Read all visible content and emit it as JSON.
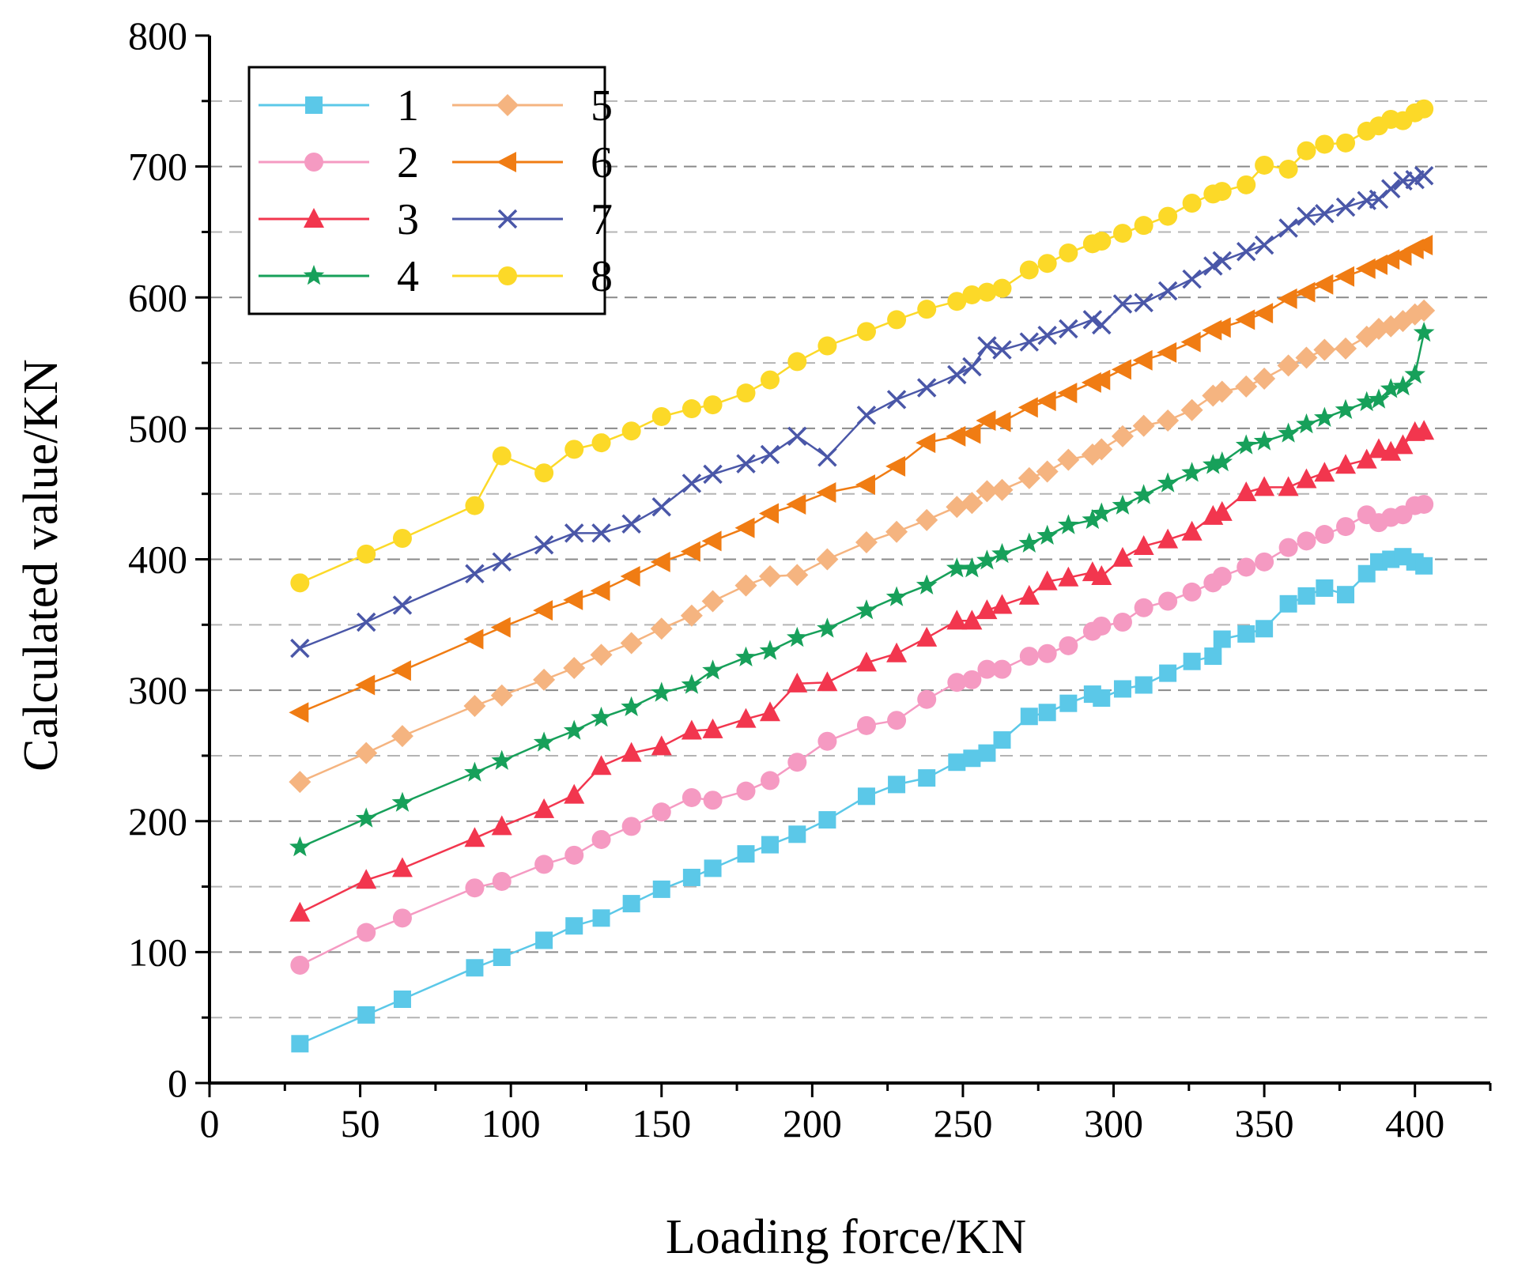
{
  "chart_data": {
    "type": "line",
    "title": "",
    "xlabel": "Loading force/KN",
    "ylabel": "Calculated value/KN",
    "xlim": [
      0,
      425
    ],
    "ylim": [
      0,
      800
    ],
    "x_ticks": [
      0,
      50,
      100,
      150,
      200,
      250,
      300,
      350,
      400
    ],
    "y_ticks": [
      0,
      100,
      200,
      300,
      400,
      500,
      600,
      700,
      800
    ],
    "x_tick_labels": [
      "0",
      "50",
      "100",
      "150",
      "200",
      "250",
      "300",
      "350",
      "400"
    ],
    "y_tick_labels": [
      "0",
      "100",
      "200",
      "300",
      "400",
      "500",
      "600",
      "700",
      "800"
    ],
    "grid": "horizontal dashed",
    "legend_position": "top-left",
    "x": [
      30,
      52,
      64,
      88,
      97,
      111,
      121,
      130,
      140,
      150,
      160,
      167,
      178,
      186,
      195,
      205,
      218,
      228,
      238,
      248,
      253,
      258,
      263,
      272,
      278,
      285,
      293,
      296,
      303,
      310,
      318,
      326,
      333,
      336,
      344,
      350,
      358,
      364,
      370,
      377,
      384,
      388,
      392,
      396,
      400,
      403
    ],
    "series": [
      {
        "name": "1",
        "color": "#5bc8e8",
        "marker": "square",
        "values": [
          30,
          52,
          64,
          88,
          96,
          109,
          120,
          126,
          137,
          148,
          157,
          164,
          175,
          182,
          190,
          201,
          219,
          228,
          233,
          245,
          248,
          252,
          262,
          280,
          283,
          290,
          297,
          294,
          301,
          304,
          313,
          322,
          326,
          339,
          343,
          347,
          366,
          372,
          378,
          373,
          389,
          398,
          400,
          402,
          398,
          395
        ]
      },
      {
        "name": "2",
        "color": "#f59ac2",
        "marker": "circle",
        "values": [
          90,
          115,
          126,
          149,
          154,
          167,
          174,
          186,
          196,
          207,
          218,
          216,
          223,
          231,
          245,
          261,
          273,
          277,
          293,
          306,
          308,
          316,
          316,
          326,
          328,
          334,
          345,
          349,
          352,
          363,
          368,
          375,
          382,
          387,
          394,
          398,
          409,
          414,
          419,
          425,
          434,
          428,
          432,
          434,
          441,
          442
        ]
      },
      {
        "name": "3",
        "color": "#f2364e",
        "marker": "triangle",
        "values": [
          130,
          155,
          164,
          187,
          196,
          209,
          220,
          242,
          252,
          257,
          269,
          270,
          278,
          283,
          305,
          306,
          321,
          328,
          340,
          353,
          353,
          361,
          365,
          372,
          383,
          386,
          390,
          387,
          401,
          410,
          415,
          421,
          433,
          436,
          451,
          455,
          455,
          461,
          466,
          472,
          476,
          484,
          482,
          487,
          497,
          498
        ]
      },
      {
        "name": "4",
        "color": "#17a05a",
        "marker": "star",
        "values": [
          180,
          202,
          214,
          237,
          246,
          260,
          269,
          279,
          287,
          298,
          304,
          315,
          325,
          330,
          340,
          347,
          361,
          371,
          380,
          393,
          393,
          399,
          404,
          412,
          418,
          426,
          430,
          435,
          441,
          449,
          458,
          466,
          472,
          474,
          487,
          490,
          496,
          503,
          508,
          514,
          520,
          522,
          530,
          532,
          541,
          573
        ]
      },
      {
        "name": "5",
        "color": "#f5b480",
        "marker": "diamond",
        "values": [
          230,
          252,
          265,
          288,
          296,
          308,
          317,
          327,
          336,
          347,
          357,
          368,
          380,
          387,
          388,
          400,
          413,
          421,
          430,
          440,
          443,
          452,
          453,
          462,
          467,
          476,
          480,
          484,
          494,
          502,
          506,
          514,
          525,
          528,
          532,
          538,
          548,
          554,
          560,
          561,
          570,
          576,
          578,
          582,
          587,
          590
        ]
      },
      {
        "name": "6",
        "color": "#f07c13",
        "marker": "triangle-left",
        "values": [
          283,
          304,
          315,
          339,
          348,
          361,
          369,
          376,
          387,
          398,
          406,
          414,
          424,
          435,
          442,
          451,
          457,
          471,
          489,
          494,
          496,
          506,
          505,
          516,
          521,
          527,
          535,
          537,
          545,
          552,
          558,
          566,
          575,
          577,
          583,
          588,
          599,
          604,
          610,
          616,
          622,
          625,
          629,
          632,
          637,
          640
        ]
      },
      {
        "name": "7",
        "color": "#4a57a8",
        "marker": "x",
        "values": [
          332,
          352,
          365,
          389,
          398,
          411,
          420,
          420,
          427,
          440,
          458,
          465,
          473,
          480,
          494,
          478,
          510,
          522,
          531,
          541,
          547,
          563,
          560,
          566,
          571,
          576,
          583,
          579,
          595,
          596,
          605,
          614,
          624,
          628,
          635,
          640,
          653,
          662,
          664,
          669,
          674,
          675,
          683,
          689,
          690,
          693
        ]
      },
      {
        "name": "8",
        "color": "#fcd928",
        "marker": "circle",
        "values": [
          382,
          404,
          416,
          441,
          479,
          466,
          484,
          489,
          498,
          509,
          515,
          518,
          527,
          537,
          551,
          563,
          574,
          583,
          591,
          597,
          602,
          604,
          607,
          621,
          626,
          634,
          641,
          643,
          649,
          655,
          662,
          672,
          679,
          681,
          686,
          701,
          698,
          712,
          717,
          718,
          727,
          731,
          736,
          735,
          741,
          744
        ]
      }
    ]
  }
}
